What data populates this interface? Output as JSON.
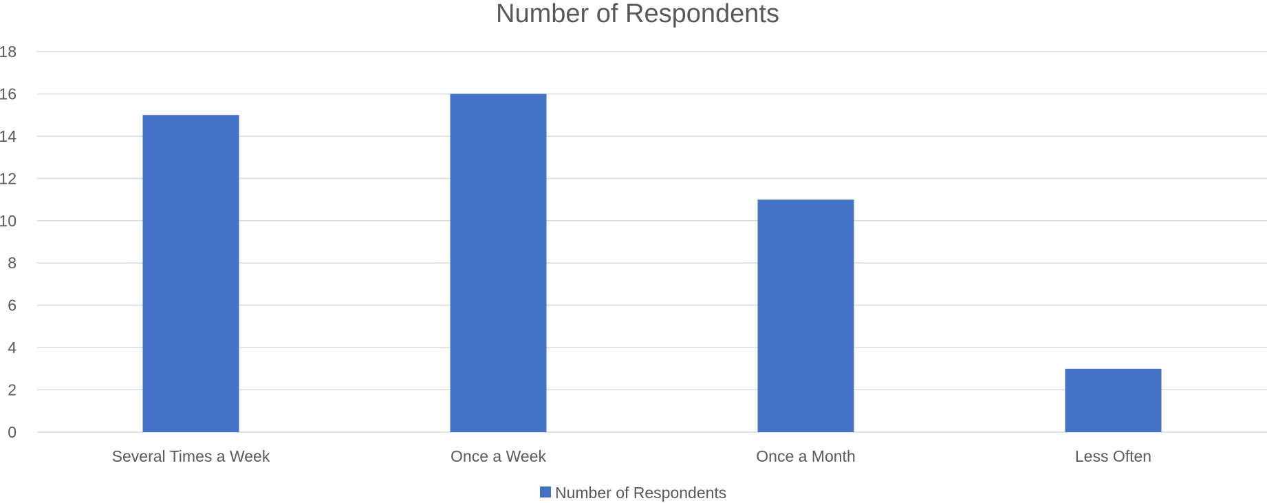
{
  "chart_data": {
    "type": "bar",
    "title": "Number of Respondents",
    "categories": [
      "Several Times a Week",
      "Once a Week",
      "Once a Month",
      "Less Often"
    ],
    "series": [
      {
        "name": "Number of Respondents",
        "values": [
          15,
          16,
          11,
          3
        ],
        "color": "#4472c4"
      }
    ],
    "xlabel": "",
    "ylabel": "",
    "ylim": [
      0,
      18
    ],
    "yticks": [
      0,
      2,
      4,
      6,
      8,
      10,
      12,
      14,
      16,
      18
    ],
    "grid": true,
    "legend_position": "bottom"
  }
}
